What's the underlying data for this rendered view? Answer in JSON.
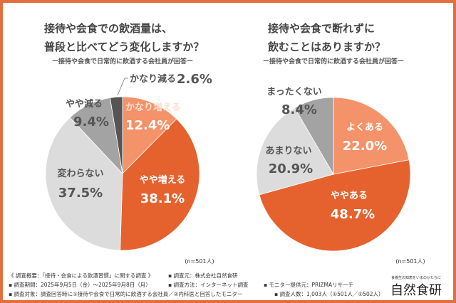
{
  "colors": {
    "frame": "#e2703f",
    "orange_light": "#f4926a",
    "orange_dark": "#e5622f",
    "gray_light": "#dcdcdc",
    "gray_mid": "#a3a3a3",
    "gray_dark": "#555555"
  },
  "chart_data": [
    {
      "type": "pie",
      "title": "接待や会食での飲酒量は、普段と比べてどう変化しますか？",
      "title_lines": [
        "接待や会食での飲酒量は、",
        "普段と比べてどう変化しますか？"
      ],
      "subtitle": "ー接待や会食で日常的に飲酒する会社員が回答ー",
      "n_label": "(n=501人)",
      "slices": [
        {
          "label": "かなり増える",
          "value": 12.4,
          "text": "12.4%",
          "color": "#f4926a"
        },
        {
          "label": "やや増える",
          "value": 38.1,
          "text": "38.1%",
          "color": "#e5622f"
        },
        {
          "label": "変わらない",
          "value": 37.5,
          "text": "37.5%",
          "color": "#dcdcdc"
        },
        {
          "label": "やや減る",
          "value": 9.4,
          "text": "9.4%",
          "color": "#a3a3a3"
        },
        {
          "label": "かなり減る",
          "value": 2.6,
          "text": "2.6%",
          "color": "#555555"
        }
      ]
    },
    {
      "type": "pie",
      "title": "接待や会食で断れずに飲むことはありますか？",
      "title_lines": [
        "接待や会食で断れずに",
        "飲むことはありますか？"
      ],
      "subtitle": "ー接待や会食で日常的に飲酒する会社員が回答ー",
      "n_label": "(n=501人)",
      "slices": [
        {
          "label": "よくある",
          "value": 22.0,
          "text": "22.0%",
          "color": "#f4926a"
        },
        {
          "label": "ややある",
          "value": 48.7,
          "text": "48.7%",
          "color": "#e5622f"
        },
        {
          "label": "あまりない",
          "value": 20.9,
          "text": "20.9%",
          "color": "#dcdcdc"
        },
        {
          "label": "まったくない",
          "value": 8.4,
          "text": "8.4%",
          "color": "#a3a3a3"
        }
      ]
    }
  ],
  "footer": {
    "line1a": "《 調査概要：「接待・会食による飲酒習慣」に関する調査 》",
    "line1b": "▪ 調査元：株式会社自然食研",
    "line2a": "▪ 調査期間：2025年9月5日（金）～2025年9月8日（月）",
    "line2b": "▪ 調査方法：インターネット調査",
    "line2c": "▪ モニター提供元：PRIZMAリサーチ",
    "line3a": "▪ 調査対象：調査回答時に①接待や会食で日常的に飲酒する会社員／②内科医と回答したモニター",
    "line3b": "▪ 調査人数：1,003人（①501人／②502人）"
  },
  "logo": {
    "tagline": "食養生の知恵をいまのかたちに",
    "name": "自然食研"
  }
}
